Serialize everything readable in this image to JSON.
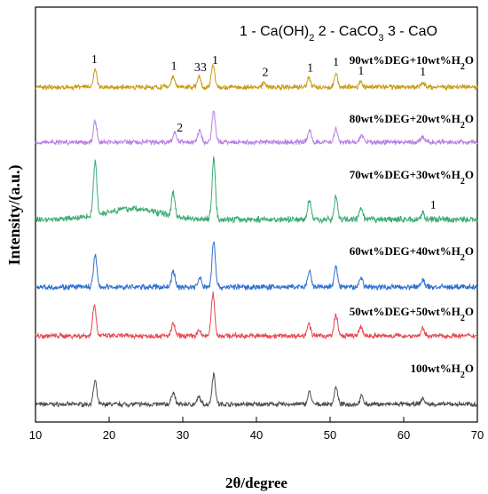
{
  "chart_data": {
    "type": "line",
    "title": "",
    "xlabel": "2θ/degree",
    "ylabel": "Intensity/(a.u.)",
    "xlim": [
      10,
      70
    ],
    "x_ticks": [
      "10",
      "20",
      "30",
      "40",
      "50",
      "60",
      "70"
    ],
    "y_ticks": "none",
    "grid": false,
    "legend_position": "top-right",
    "phase_legend": {
      "p1": "1 - Ca(OH)",
      "p1_sub": "2",
      "p2": " 2 - CaCO",
      "p2_sub": "3",
      "p3": " 3 - CaO"
    },
    "series": [
      {
        "name": "100wt%H2O",
        "label_main": "100wt%H",
        "label_sub": "2",
        "label_tail": "O",
        "color": "#4d4d4d",
        "noise": 2.0,
        "peaks": [
          [
            18.1,
            26
          ],
          [
            28.7,
            14
          ],
          [
            32.2,
            8
          ],
          [
            34.2,
            34
          ],
          [
            47.2,
            14
          ],
          [
            50.8,
            19
          ],
          [
            54.3,
            9
          ],
          [
            62.6,
            7
          ]
        ],
        "broad": 0,
        "labels": []
      },
      {
        "name": "50wt%DEG+50wt%H2O",
        "label_main": "50wt%DEG+50wt%H",
        "label_sub": "2",
        "label_tail": "O",
        "color": "#e8464e",
        "noise": 2.3,
        "peaks": [
          [
            18.0,
            36
          ],
          [
            28.7,
            14
          ],
          [
            32.2,
            6
          ],
          [
            34.1,
            48
          ],
          [
            47.1,
            15
          ],
          [
            50.8,
            24
          ],
          [
            54.2,
            10
          ],
          [
            62.6,
            8
          ]
        ],
        "broad": 0,
        "labels": []
      },
      {
        "name": "60wt%DEG+40wt%H2O",
        "label_main": "60wt%DEG+40wt%H",
        "label_sub": "2",
        "label_tail": "O",
        "color": "#2f6fd0",
        "noise": 2.5,
        "peaks": [
          [
            18.1,
            36
          ],
          [
            28.7,
            18
          ],
          [
            32.3,
            10
          ],
          [
            34.2,
            52
          ],
          [
            47.2,
            17
          ],
          [
            50.8,
            22
          ],
          [
            54.2,
            11
          ],
          [
            62.6,
            8
          ]
        ],
        "broad": 0,
        "labels": []
      },
      {
        "name": "70wt%DEG+30wt%H2O",
        "label_main": "70wt%DEG+30wt%H",
        "label_sub": "2",
        "label_tail": "O",
        "color": "#3aab72",
        "noise": 2.8,
        "peaks": [
          [
            18.1,
            60
          ],
          [
            28.7,
            26
          ],
          [
            34.2,
            68
          ],
          [
            47.2,
            22
          ],
          [
            50.8,
            26
          ],
          [
            54.2,
            12
          ],
          [
            62.6,
            8
          ]
        ],
        "broad": 12,
        "labels": [
          {
            "x": 64.0,
            "text": "1"
          }
        ]
      },
      {
        "name": "80wt%DEG+20wt%H2O",
        "label_main": "80wt%DEG+20wt%H",
        "label_sub": "2",
        "label_tail": "O",
        "color": "#b77fe2",
        "noise": 2.2,
        "peaks": [
          [
            18.1,
            24
          ],
          [
            28.9,
            11
          ],
          [
            32.3,
            14
          ],
          [
            34.2,
            34
          ],
          [
            47.2,
            14
          ],
          [
            50.8,
            16
          ],
          [
            54.3,
            8
          ],
          [
            62.6,
            6
          ]
        ],
        "broad": 0,
        "labels": [
          {
            "x": 29.6,
            "text": "2"
          }
        ]
      },
      {
        "name": "90wt%DEG+10wt%H2O",
        "label_main": "90wt%DEG+10wt%H",
        "label_sub": "2",
        "label_tail": "O",
        "color": "#c79a14",
        "noise": 2.2,
        "peaks": [
          [
            18.1,
            20
          ],
          [
            28.7,
            12
          ],
          [
            32.2,
            12
          ],
          [
            34.1,
            26
          ],
          [
            41.0,
            5
          ],
          [
            47.1,
            11
          ],
          [
            50.8,
            16
          ],
          [
            54.2,
            6
          ],
          [
            62.6,
            5
          ]
        ],
        "broad": 0,
        "labels": [
          {
            "x": 18.0,
            "text": "1"
          },
          {
            "x": 28.8,
            "text": "1"
          },
          {
            "x": 32.4,
            "text": "33"
          },
          {
            "x": 34.4,
            "text": "1"
          },
          {
            "x": 41.2,
            "text": "2"
          },
          {
            "x": 47.3,
            "text": "1"
          },
          {
            "x": 50.8,
            "text": "1"
          },
          {
            "x": 54.2,
            "text": "1"
          },
          {
            "x": 62.6,
            "text": "1"
          }
        ]
      }
    ]
  }
}
